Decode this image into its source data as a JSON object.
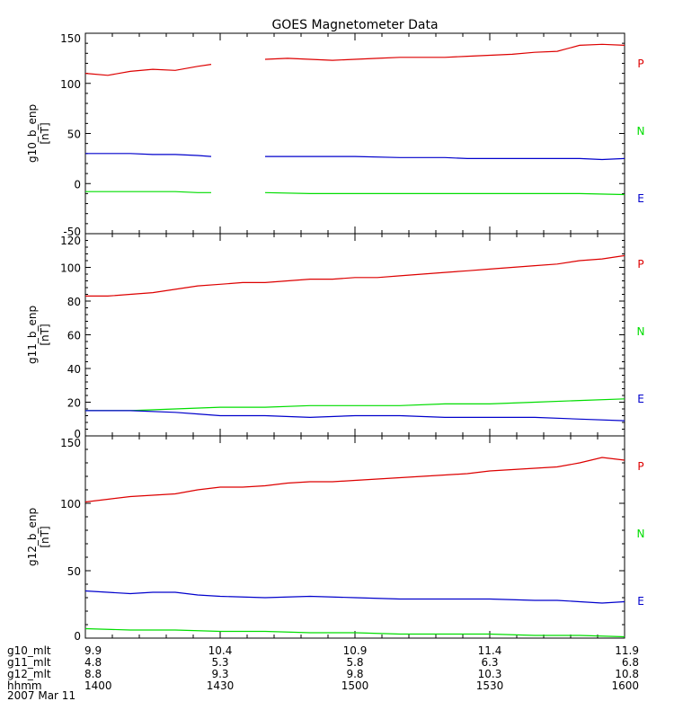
{
  "title": "GOES Magnetometer Data",
  "date_label": "2007 Mar 11",
  "colors": {
    "P": "#dd0000",
    "N": "#00dd00",
    "E": "#0000cc",
    "axis": "#000000"
  },
  "legend": [
    {
      "key": "P",
      "label": "P"
    },
    {
      "key": "N",
      "label": "N"
    },
    {
      "key": "E",
      "label": "E"
    }
  ],
  "footer_rows": [
    {
      "label": "g10_mlt",
      "values": [
        "9.9",
        "10.4",
        "10.9",
        "11.4",
        "11.9"
      ]
    },
    {
      "label": "g11_mlt",
      "values": [
        "4.8",
        "5.3",
        "5.8",
        "6.3",
        "6.8"
      ]
    },
    {
      "label": "g12_mlt",
      "values": [
        "8.8",
        "9.3",
        "9.8",
        "10.3",
        "10.8"
      ]
    },
    {
      "label": "hhmm",
      "values": [
        "1400",
        "1430",
        "1500",
        "1530",
        "1600"
      ]
    }
  ],
  "chart_data": [
    {
      "type": "line",
      "ylabel": "g10_b_enp",
      "yunit": "[nT]",
      "x_unit": "minutes from 1400 UT",
      "xlim": [
        0,
        120
      ],
      "ylim": [
        -50,
        150
      ],
      "yticks": [
        -50,
        0,
        50,
        100,
        150
      ],
      "gap": [
        28,
        40
      ],
      "series": [
        {
          "name": "P",
          "x": [
            0,
            5,
            10,
            15,
            20,
            25,
            28,
            40,
            45,
            50,
            55,
            60,
            65,
            70,
            75,
            80,
            85,
            90,
            95,
            100,
            105,
            110,
            115,
            120
          ],
          "values": [
            110,
            108,
            112,
            114,
            113,
            117,
            119,
            124,
            125,
            124,
            123,
            124,
            125,
            126,
            126,
            126,
            127,
            128,
            129,
            131,
            132,
            138,
            139,
            138
          ]
        },
        {
          "name": "E",
          "x": [
            0,
            5,
            10,
            15,
            20,
            25,
            28,
            40,
            50,
            60,
            70,
            80,
            85,
            90,
            100,
            110,
            115,
            120
          ],
          "values": [
            30,
            30,
            30,
            29,
            29,
            28,
            27,
            27,
            27,
            27,
            26,
            26,
            25,
            25,
            25,
            25,
            24,
            25
          ]
        },
        {
          "name": "N",
          "x": [
            0,
            5,
            10,
            15,
            20,
            25,
            28,
            40,
            50,
            60,
            70,
            80,
            90,
            100,
            110,
            120
          ],
          "values": [
            -8,
            -8,
            -8,
            -8,
            -8,
            -9,
            -9,
            -9,
            -10,
            -10,
            -10,
            -10,
            -10,
            -10,
            -10,
            -11
          ]
        }
      ]
    },
    {
      "type": "line",
      "ylabel": "g11_b_enp",
      "yunit": "[nT]",
      "xlim": [
        0,
        120
      ],
      "ylim": [
        0,
        120
      ],
      "yticks": [
        0,
        20,
        40,
        60,
        80,
        100,
        120
      ],
      "series": [
        {
          "name": "P",
          "x": [
            0,
            5,
            10,
            15,
            20,
            25,
            30,
            35,
            40,
            45,
            50,
            55,
            60,
            65,
            70,
            75,
            80,
            85,
            90,
            95,
            100,
            105,
            110,
            115,
            120
          ],
          "values": [
            83,
            83,
            84,
            85,
            87,
            89,
            90,
            91,
            91,
            92,
            93,
            93,
            94,
            94,
            95,
            96,
            97,
            98,
            99,
            100,
            101,
            102,
            104,
            105,
            107
          ]
        },
        {
          "name": "N",
          "x": [
            0,
            10,
            20,
            30,
            40,
            50,
            60,
            70,
            80,
            90,
            100,
            110,
            120
          ],
          "values": [
            15,
            15,
            16,
            17,
            17,
            18,
            18,
            18,
            19,
            19,
            20,
            21,
            22
          ]
        },
        {
          "name": "E",
          "x": [
            0,
            10,
            20,
            25,
            30,
            40,
            50,
            60,
            70,
            80,
            90,
            100,
            110,
            120
          ],
          "values": [
            15,
            15,
            14,
            13,
            12,
            12,
            11,
            12,
            12,
            11,
            11,
            11,
            10,
            9
          ]
        }
      ]
    },
    {
      "type": "line",
      "ylabel": "g12_b_enp",
      "yunit": "[nT]",
      "xlim": [
        0,
        120
      ],
      "ylim": [
        0,
        150
      ],
      "yticks": [
        0,
        50,
        100,
        150
      ],
      "series": [
        {
          "name": "P",
          "x": [
            0,
            5,
            10,
            15,
            20,
            25,
            30,
            35,
            40,
            45,
            50,
            55,
            60,
            65,
            70,
            75,
            80,
            85,
            90,
            95,
            100,
            105,
            110,
            115,
            120
          ],
          "values": [
            101,
            103,
            105,
            106,
            107,
            110,
            112,
            112,
            113,
            115,
            116,
            116,
            117,
            118,
            119,
            120,
            121,
            122,
            124,
            125,
            126,
            127,
            130,
            134,
            132
          ]
        },
        {
          "name": "E",
          "x": [
            0,
            5,
            10,
            15,
            20,
            25,
            30,
            40,
            50,
            60,
            70,
            80,
            90,
            100,
            105,
            110,
            115,
            120
          ],
          "values": [
            35,
            34,
            33,
            34,
            34,
            32,
            31,
            30,
            31,
            30,
            29,
            29,
            29,
            28,
            28,
            27,
            26,
            27
          ]
        },
        {
          "name": "N",
          "x": [
            0,
            10,
            20,
            30,
            40,
            50,
            60,
            70,
            80,
            90,
            100,
            110,
            120
          ],
          "values": [
            7,
            6,
            6,
            5,
            5,
            4,
            4,
            3,
            3,
            3,
            2,
            2,
            1
          ]
        }
      ]
    }
  ]
}
